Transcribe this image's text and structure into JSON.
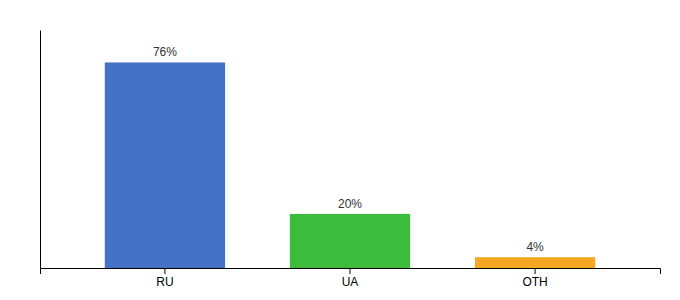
{
  "chart_data": {
    "type": "bar",
    "categories": [
      "RU",
      "UA",
      "OTH"
    ],
    "values": [
      76,
      20,
      4
    ],
    "value_labels": [
      "76%",
      "20%",
      "4%"
    ],
    "colors": [
      "#4472c4",
      "#3dbb3d",
      "#f5a623"
    ],
    "ylim": [
      0,
      88
    ],
    "data_labels": true,
    "tick_labels": "x",
    "grid": false
  }
}
